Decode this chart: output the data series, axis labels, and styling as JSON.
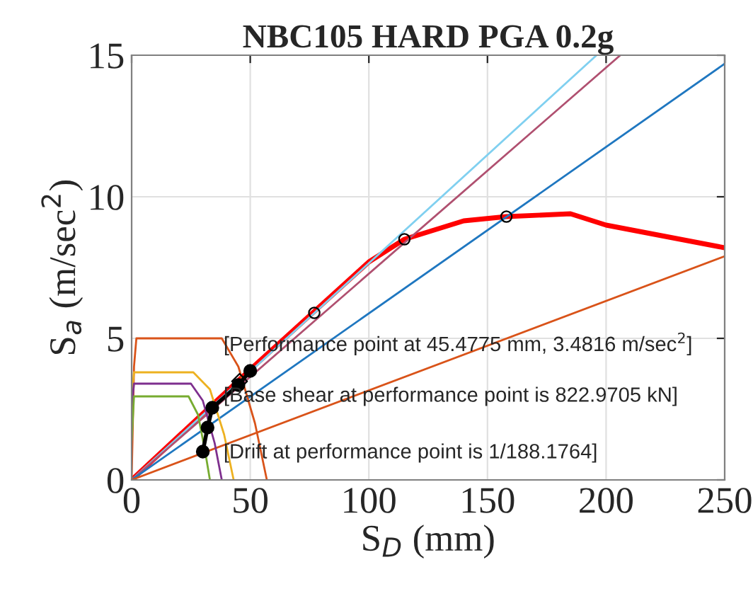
{
  "chart_data": {
    "type": "line",
    "title": "NBC105 HARD PGA 0.2g",
    "xlabel": "S$_{D}$ (mm)",
    "ylabel": "S$_{a}$ (m/sec$^{2}$)",
    "xlim": [
      0,
      250
    ],
    "ylim": [
      0,
      15
    ],
    "xticks": [
      0,
      50,
      100,
      150,
      200,
      250
    ],
    "yticks": [
      0,
      5,
      10,
      15
    ],
    "grid": true,
    "line_style": "solid",
    "annotations": [
      "[Performance point at 45.4775 mm, 3.4816 m/sec$^{2}$]",
      "[Base shear at performance point is 822.9705 kN]",
      "[Drift at performance point is 1/188.1764]"
    ],
    "series": [
      {
        "color": "#ff0000",
        "x": [
          0,
          50,
          100,
          115,
          140,
          158,
          185,
          200,
          250
        ],
        "values": [
          0,
          3.9,
          7.7,
          8.5,
          9.15,
          9.3,
          9.4,
          9.0,
          8.2
        ],
        "marker": "none"
      },
      {
        "color": "#80d0f0",
        "x": [
          0,
          196
        ],
        "values": [
          0,
          15
        ],
        "marker": "none"
      },
      {
        "color": "#b05070",
        "x": [
          0,
          206
        ],
        "values": [
          0,
          15
        ],
        "marker": "none"
      },
      {
        "color": "#1f77c0",
        "x": [
          0,
          250
        ],
        "values": [
          0,
          14.7
        ],
        "marker": "none"
      },
      {
        "color": "#d95319",
        "x": [
          0,
          250
        ],
        "values": [
          0,
          7.9
        ],
        "marker": "none"
      },
      {
        "color": "#d95319",
        "x": [
          0,
          1,
          2,
          38,
          45,
          52,
          57
        ],
        "values": [
          0,
          4.0,
          5.0,
          5.0,
          4.0,
          2.0,
          0
        ],
        "marker": "none"
      },
      {
        "color": "#edb120",
        "x": [
          0,
          1,
          26,
          33,
          39,
          43
        ],
        "values": [
          3.0,
          3.8,
          3.8,
          3.2,
          1.6,
          0
        ],
        "marker": "none"
      },
      {
        "color": "#7e2f8e",
        "x": [
          0,
          1,
          25,
          30,
          35,
          38
        ],
        "values": [
          2.6,
          3.4,
          3.4,
          2.8,
          1.3,
          0
        ],
        "marker": "none"
      },
      {
        "color": "#77ac30",
        "x": [
          0,
          1,
          24,
          28,
          31,
          33
        ],
        "values": [
          1.4,
          2.95,
          2.95,
          2.3,
          1.0,
          0
        ],
        "marker": "none"
      },
      {
        "color": "#000000",
        "x": [
          30,
          32,
          34,
          45,
          50
        ],
        "values": [
          1.0,
          1.85,
          2.55,
          3.35,
          3.85
        ],
        "marker": "circle"
      },
      {
        "type": "scatter",
        "color": "#000000",
        "x": [
          77,
          115,
          158
        ],
        "values": [
          5.9,
          8.5,
          9.3
        ],
        "marker": "circle"
      },
      {
        "type": "scatter",
        "color": "#000000",
        "x": [
          45.5
        ],
        "values": [
          3.48
        ],
        "marker": "diamond"
      }
    ]
  }
}
